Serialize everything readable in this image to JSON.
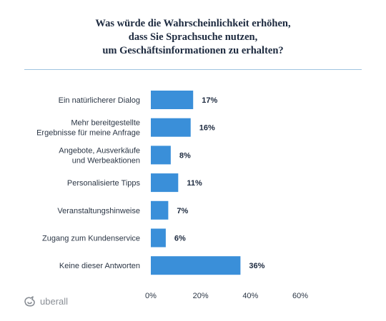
{
  "title_lines": [
    "Was würde die Wahrscheinlichkeit erhöhen,",
    "dass Sie Sprachsuche nutzen,",
    "um Geschäftsinformationen zu erhalten?"
  ],
  "brand": {
    "name": "uberall",
    "logo_icon": "uberall-logo-icon",
    "color": "#8a8f96"
  },
  "colors": {
    "bar": "#3a8fd9",
    "rule": "#9fc3e0",
    "title": "#1d2a3f"
  },
  "chart_data": {
    "type": "bar",
    "orientation": "horizontal",
    "title": "Was würde die Wahrscheinlichkeit erhöhen, dass Sie Sprachsuche nutzen, um Geschäftsinformationen zu erhalten?",
    "categories": [
      [
        "Ein natürlicherer Dialog"
      ],
      [
        "Mehr bereitgestellte",
        "Ergebnisse für meine Anfrage"
      ],
      [
        "Angebote, Ausverkäufe",
        "und Werbeaktionen"
      ],
      [
        "Personalisierte Tipps"
      ],
      [
        "Veranstaltungshinweise"
      ],
      [
        "Zugang zum Kundenservice"
      ],
      [
        "Keine dieser Antworten"
      ]
    ],
    "values": [
      17,
      16,
      8,
      11,
      7,
      6,
      36
    ],
    "value_labels": [
      "17%",
      "16%",
      "8%",
      "11%",
      "7%",
      "6%",
      "36%"
    ],
    "xlim": [
      0,
      60
    ],
    "xticks": [
      0,
      20,
      40,
      60
    ],
    "xtick_labels": [
      "0%",
      "20%",
      "40%",
      "60%"
    ],
    "grid": false,
    "legend": "none"
  }
}
